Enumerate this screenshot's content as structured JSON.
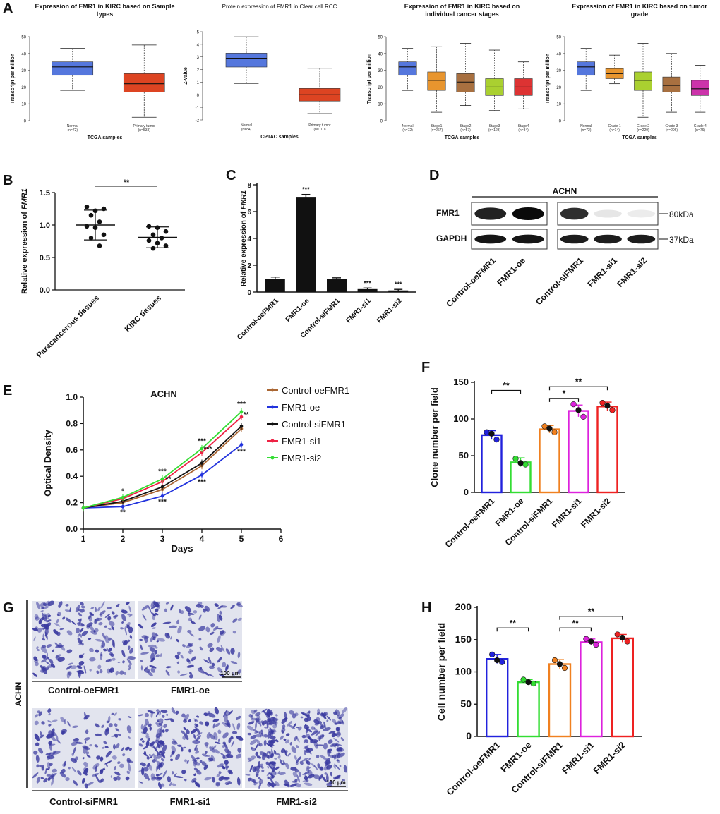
{
  "panels": {
    "A": "A",
    "B": "B",
    "C": "C",
    "D": "D",
    "E": "E",
    "F": "F",
    "G": "G",
    "H": "H"
  },
  "colors": {
    "ctrl_oe": "#2222dd",
    "fmr1_oe": "#33dd33",
    "ctrl_si": "#f08020",
    "si1": "#dd22dd",
    "si2": "#ee2222",
    "normal_box": "#5577dd",
    "tumor_box": "#dd4422",
    "stage1": "#e8952e",
    "stage2": "#a87040",
    "stage3": "#aad030",
    "stage4": "#dd3333",
    "grade1": "#e8952e",
    "grade2": "#aad030",
    "grade3": "#a87040",
    "grade4": "#cc33aa",
    "line_ctrl_oe": "#aa6633",
    "line_fmr1_oe": "#2233dd",
    "line_ctrl_si": "#111111",
    "line_si1": "#ee2244",
    "line_si2": "#33dd33",
    "stain": "#3a3aa0"
  },
  "chart_data": [
    {
      "id": "A1",
      "type": "boxplot",
      "title_line1": "Expression of FMR1 in KIRC based on Sample",
      "title_line2": "types",
      "ylabel": "Transcript per million",
      "xlabel": "TCGA samples",
      "ylim": [
        0,
        50
      ],
      "yticks": [
        0,
        10,
        20,
        30,
        40,
        50
      ],
      "categories": [
        {
          "name": "Normal",
          "n": "(n=72)",
          "min": 18,
          "q1": 27,
          "median": 32,
          "q3": 35,
          "max": 43,
          "color": "#5577dd"
        },
        {
          "name": "Primary tumor",
          "n": "(n=533)",
          "min": 2,
          "q1": 17,
          "median": 22,
          "q3": 28,
          "max": 45,
          "color": "#dd4422"
        }
      ]
    },
    {
      "id": "A2",
      "type": "boxplot",
      "title_line1": "Protein expression of FMR1 in Clear cell RCC",
      "title_line2": "",
      "ylabel": "Z-value",
      "xlabel": "CPTAC samples",
      "ylim": [
        -2,
        5
      ],
      "yticks": [
        -2,
        -1,
        0,
        1,
        2,
        3,
        4,
        5
      ],
      "categories": [
        {
          "name": "Normal",
          "n": "(n=84)",
          "min": 0.9,
          "q1": 2.2,
          "median": 2.9,
          "q3": 3.3,
          "max": 4.6,
          "color": "#5577dd"
        },
        {
          "name": "Primary tumor",
          "n": "(n=110)",
          "min": -1.5,
          "q1": -0.5,
          "median": 0,
          "q3": 0.5,
          "max": 2.1,
          "color": "#dd4422"
        }
      ]
    },
    {
      "id": "A3",
      "type": "boxplot",
      "title_line1": "Expression of FMR1 in KIRC based on",
      "title_line2": "individual cancer stages",
      "ylabel": "Transcript per million",
      "xlabel": "TCGA samples",
      "ylim": [
        0,
        50
      ],
      "yticks": [
        0,
        10,
        20,
        30,
        40,
        50
      ],
      "categories": [
        {
          "name": "Normal",
          "n": "(n=72)",
          "min": 18,
          "q1": 27,
          "median": 32,
          "q3": 35,
          "max": 43,
          "color": "#5577dd"
        },
        {
          "name": "Stage1",
          "n": "(n=267)",
          "min": 5,
          "q1": 18,
          "median": 24,
          "q3": 29,
          "max": 44,
          "color": "#e8952e"
        },
        {
          "name": "Stage2",
          "n": "(n=57)",
          "min": 9,
          "q1": 17,
          "median": 23,
          "q3": 28,
          "max": 46,
          "color": "#a87040"
        },
        {
          "name": "Stage3",
          "n": "(n=123)",
          "min": 6,
          "q1": 15,
          "median": 20,
          "q3": 25,
          "max": 42,
          "color": "#aad030"
        },
        {
          "name": "Stage4",
          "n": "(n=84)",
          "min": 7,
          "q1": 15,
          "median": 20,
          "q3": 25,
          "max": 35,
          "color": "#dd3333"
        }
      ]
    },
    {
      "id": "A4",
      "type": "boxplot",
      "title_line1": "Expression of FMR1 in KIRC based on tumor",
      "title_line2": "grade",
      "ylabel": "Transcript per million",
      "xlabel": "TCGA samples",
      "ylim": [
        0,
        50
      ],
      "yticks": [
        0,
        10,
        20,
        30,
        40,
        50
      ],
      "categories": [
        {
          "name": "Normal",
          "n": "(n=72)",
          "min": 18,
          "q1": 27,
          "median": 32,
          "q3": 35,
          "max": 43,
          "color": "#5577dd"
        },
        {
          "name": "Grade 1",
          "n": "(n=14)",
          "min": 22,
          "q1": 25,
          "median": 28,
          "q3": 31,
          "max": 39,
          "color": "#e8952e"
        },
        {
          "name": "Grade 2",
          "n": "(n=229)",
          "min": 2,
          "q1": 18,
          "median": 24,
          "q3": 29,
          "max": 46,
          "color": "#aad030"
        },
        {
          "name": "Grade 3",
          "n": "(n=206)",
          "min": 5,
          "q1": 17,
          "median": 21,
          "q3": 26,
          "max": 40,
          "color": "#a87040"
        },
        {
          "name": "Grade 4",
          "n": "(n=76)",
          "min": 5,
          "q1": 15,
          "median": 19,
          "q3": 24,
          "max": 33,
          "color": "#cc33aa"
        }
      ]
    },
    {
      "id": "B",
      "type": "scatter",
      "ylabel_pre": "Relative expression of ",
      "ylabel_gene": "FMR1",
      "ylim": [
        0,
        1.5
      ],
      "yticks": [
        "0.0",
        "0.5",
        "1.0",
        "1.5"
      ],
      "categories": [
        "Paracancerous tissues",
        "KIRC tissues"
      ],
      "significance": "**",
      "groups": [
        {
          "name": "Paracancerous tissues",
          "mean": 1.0,
          "sd": 0.23,
          "points": [
            1.28,
            1.22,
            1.25,
            1.15,
            1.05,
            0.98,
            0.96,
            0.85,
            0.8,
            0.68
          ]
        },
        {
          "name": "KIRC tissues",
          "mean": 0.81,
          "sd": 0.16,
          "points": [
            0.98,
            0.96,
            0.9,
            0.85,
            0.8,
            0.76,
            0.72,
            0.68,
            0.64
          ]
        }
      ]
    },
    {
      "id": "C",
      "type": "bar",
      "ylabel_pre": "Relative expression of ",
      "ylabel_gene": "FMR1",
      "ylim": [
        0,
        8
      ],
      "yticks": [
        0,
        2,
        4,
        6,
        8
      ],
      "categories": [
        "Control-oeFMR1",
        "FMR1-oe",
        "Control-siFMR1",
        "FMR1-si1",
        "FMR1-si2"
      ],
      "values": [
        1.0,
        7.1,
        1.0,
        0.22,
        0.12
      ],
      "errors": [
        0.12,
        0.18,
        0.06,
        0.08,
        0.08
      ],
      "stars": [
        "",
        "***",
        "",
        "***",
        "***"
      ]
    },
    {
      "id": "E",
      "type": "line",
      "title": "ACHN",
      "xlabel": "Days",
      "ylabel": "Optical Density",
      "xlim": [
        1,
        6
      ],
      "xticks": [
        1,
        2,
        3,
        4,
        5,
        6
      ],
      "ylim": [
        0,
        1.0
      ],
      "yticks": [
        "0.0",
        "0.2",
        "0.4",
        "0.6",
        "0.8",
        "1.0"
      ],
      "x": [
        1,
        2,
        3,
        4,
        5
      ],
      "series": [
        {
          "name": "Control-oeFMR1",
          "color": "#aa6633",
          "values": [
            0.16,
            0.2,
            0.3,
            0.48,
            0.76
          ]
        },
        {
          "name": "FMR1-oe",
          "color": "#2233dd",
          "values": [
            0.16,
            0.17,
            0.25,
            0.41,
            0.64
          ]
        },
        {
          "name": "Control-siFMR1",
          "color": "#111111",
          "values": [
            0.16,
            0.21,
            0.32,
            0.5,
            0.78
          ]
        },
        {
          "name": "FMR1-si1",
          "color": "#ee2244",
          "values": [
            0.16,
            0.23,
            0.36,
            0.58,
            0.85
          ]
        },
        {
          "name": "FMR1-si2",
          "color": "#33dd33",
          "values": [
            0.16,
            0.24,
            0.38,
            0.61,
            0.89
          ]
        }
      ],
      "annotations": [
        {
          "text": "*",
          "x": 2,
          "y": 0.27
        },
        {
          "text": "**",
          "x": 2,
          "y": 0.11
        },
        {
          "text": "***",
          "x": 3,
          "y": 0.42
        },
        {
          "text": "**",
          "x": 3.15,
          "y": 0.36
        },
        {
          "text": "***",
          "x": 3,
          "y": 0.19
        },
        {
          "text": "***",
          "x": 4,
          "y": 0.65
        },
        {
          "text": "***",
          "x": 4.15,
          "y": 0.59
        },
        {
          "text": "***",
          "x": 4,
          "y": 0.34
        },
        {
          "text": "***",
          "x": 5,
          "y": 0.93
        },
        {
          "text": "**",
          "x": 5.12,
          "y": 0.85
        },
        {
          "text": "***",
          "x": 5,
          "y": 0.57
        }
      ]
    },
    {
      "id": "F",
      "type": "bar",
      "ylabel": "Clone number per field",
      "ylim": [
        0,
        150
      ],
      "yticks": [
        0,
        50,
        100,
        150
      ],
      "categories": [
        "Control-oeFMR1",
        "FMR1-oe",
        "Control-siFMR1",
        "FMR1-si1",
        "FMR1-si2"
      ],
      "values": [
        78,
        41,
        86,
        111,
        117
      ],
      "errors": [
        6,
        6,
        5,
        8,
        6
      ],
      "points": [
        [
          82,
          72,
          80
        ],
        [
          46,
          38,
          40
        ],
        [
          90,
          82,
          87
        ],
        [
          120,
          103,
          112
        ],
        [
          122,
          112,
          118
        ]
      ],
      "brackets": [
        {
          "from": 0,
          "to": 1,
          "y": 139,
          "label": "**"
        },
        {
          "from": 2,
          "to": 3,
          "y": 128,
          "label": "*"
        },
        {
          "from": 2,
          "to": 4,
          "y": 144,
          "label": "**"
        }
      ]
    },
    {
      "id": "H",
      "type": "bar",
      "ylabel": "Cell number per field",
      "ylim": [
        0,
        200
      ],
      "yticks": [
        0,
        50,
        100,
        150,
        200
      ],
      "categories": [
        "Control-oeFMR1",
        "FMR1-oe",
        "Control-siFMR1",
        "FMR1-si1",
        "FMR1-si2"
      ],
      "values": [
        120,
        84,
        112,
        146,
        152
      ],
      "errors": [
        7,
        4,
        7,
        5,
        6
      ],
      "points": [
        [
          127,
          115,
          118
        ],
        [
          88,
          82,
          84
        ],
        [
          118,
          106,
          112
        ],
        [
          151,
          142,
          147
        ],
        [
          158,
          147,
          153
        ]
      ],
      "brackets": [
        {
          "from": 0,
          "to": 1,
          "y": 168,
          "label": "**"
        },
        {
          "from": 2,
          "to": 3,
          "y": 168,
          "label": "**"
        },
        {
          "from": 2,
          "to": 4,
          "y": 186,
          "label": "**"
        }
      ]
    }
  ],
  "blot": {
    "cell_line": "ACHN",
    "rows": [
      "FMR1",
      "GAPDH"
    ],
    "markers": [
      "80kDa",
      "37kDa"
    ],
    "lanes": [
      "Control-oeFMR1",
      "FMR1-oe",
      "Control-siFMR1",
      "FMR1-si1",
      "FMR1-si2"
    ],
    "fmr1_intensity": [
      0.9,
      1.0,
      0.85,
      0.1,
      0.08
    ],
    "gapdh_intensity": [
      0.95,
      0.95,
      0.92,
      0.92,
      0.92
    ]
  },
  "micrographs": {
    "side_label": "ACHN",
    "scale_bar": "100 μm",
    "images": [
      {
        "label": "Control-oeFMR1",
        "density": 0.55
      },
      {
        "label": "FMR1-oe",
        "density": 0.3
      },
      {
        "label": "Control-siFMR1",
        "density": 0.35
      },
      {
        "label": "FMR1-si1",
        "density": 0.65
      },
      {
        "label": "FMR1-si2",
        "density": 0.95
      }
    ]
  }
}
